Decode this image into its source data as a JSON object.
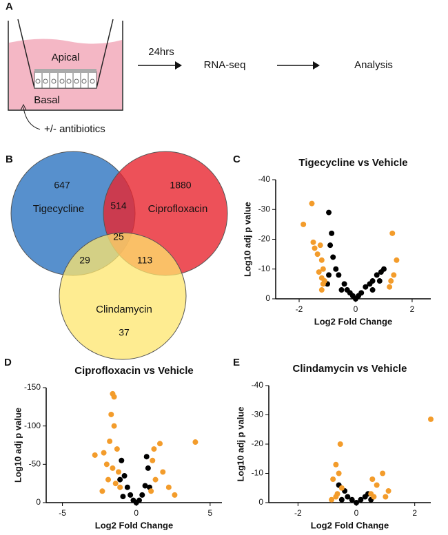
{
  "panel_labels": [
    "A",
    "B",
    "C",
    "D",
    "E"
  ],
  "schematic": {
    "apical": "Apical",
    "basal": "Basal",
    "treatment": "+/- antibiotics",
    "steps": [
      "24hrs",
      "RNA-seq",
      "Analysis"
    ]
  },
  "venn": {
    "sets": [
      "Tigecycline",
      "Ciprofloxacin",
      "Clindamycin"
    ],
    "counts": {
      "tigecycline_only": 647,
      "ciprofloxacin_only": 1880,
      "clindamycin_only": 37,
      "tig_cip": 514,
      "tig_clin": 29,
      "cip_clin": 113,
      "all": 25
    }
  },
  "chart_data": [
    {
      "type": "scatter",
      "title": "Tigecycline vs Vehicle",
      "x_label": "Log2 Fold Change",
      "y_label": "Log10 adj p value",
      "xlim": [
        -2.83,
        2.66
      ],
      "xticks": [
        -2,
        0,
        2
      ],
      "ylim": [
        0,
        -40
      ],
      "yticks": [
        -40,
        -30,
        -20,
        -10,
        0
      ],
      "series": [
        {
          "color": "#f39c2b",
          "x": [
            -1.85,
            -1.55,
            -1.5,
            -1.45,
            -1.35,
            -1.25,
            -1.2,
            -1.15,
            -1.3,
            -1.2,
            -1.15,
            -1.2,
            -1.1,
            1.3,
            1.45,
            1.25,
            1.2,
            1.35
          ],
          "values": [
            -25,
            -32,
            -19,
            -17,
            -15,
            -18,
            -13,
            -10,
            -9,
            -7,
            -5,
            -3,
            -6,
            -22,
            -13,
            -6,
            -4,
            -8
          ]
        },
        {
          "color": "#000000",
          "x": [
            -0.95,
            -0.85,
            -0.9,
            -0.8,
            -0.7,
            -0.6,
            -0.4,
            -0.3,
            -0.2,
            -0.1,
            0,
            0.1,
            0.2,
            0.35,
            0.5,
            0.6,
            0.75,
            0.9,
            1.0,
            0.85,
            -0.95,
            -1.0,
            -0.5,
            0.6
          ],
          "values": [
            -29,
            -22,
            -18,
            -14,
            -10,
            -8,
            -5,
            -3,
            -2,
            -1,
            0,
            -1,
            -2,
            -4,
            -5,
            -6,
            -8,
            -9,
            -10,
            -6,
            -8,
            -5,
            -3,
            -3
          ]
        }
      ]
    },
    {
      "type": "scatter",
      "title": "Ciprofloxacin vs Vehicle",
      "x_label": "Log2 Fold Change",
      "y_label": "Log10 adj p value",
      "xlim": [
        -6.1,
        5.8
      ],
      "xticks": [
        -5,
        0,
        5
      ],
      "ylim": [
        0,
        -150
      ],
      "yticks": [
        -150,
        -100,
        -50,
        0
      ],
      "series": [
        {
          "color": "#f39c2b",
          "x": [
            -1.6,
            -1.5,
            -1.7,
            -1.5,
            -2.8,
            -2.2,
            -1.8,
            -1.3,
            -2.0,
            -1.6,
            -1.2,
            -1.9,
            -1.4,
            -1.1,
            -2.3,
            1.6,
            1.2,
            1.1,
            4.0,
            1.8,
            1.3,
            2.2,
            1.0,
            2.6
          ],
          "values": [
            -142,
            -138,
            -115,
            -100,
            -62,
            -65,
            -80,
            -70,
            -50,
            -45,
            -40,
            -30,
            -25,
            -20,
            -15,
            -77,
            -70,
            -55,
            -79,
            -40,
            -30,
            -20,
            -15,
            -10
          ]
        },
        {
          "color": "#000000",
          "x": [
            -1.0,
            -0.8,
            -0.6,
            -0.4,
            -0.2,
            0,
            0.2,
            0.4,
            0.6,
            0.8,
            0.7,
            -1.1,
            0.9,
            -0.9
          ],
          "values": [
            -55,
            -35,
            -20,
            -10,
            -3,
            0,
            -3,
            -10,
            -22,
            -45,
            -60,
            -30,
            -20,
            -8
          ]
        }
      ]
    },
    {
      "type": "scatter",
      "title": "Clindamycin vs Vehicle",
      "x_label": "Log2 Fold Change",
      "y_label": "Log10 adj p value",
      "xlim": [
        -3.0,
        2.55
      ],
      "xticks": [
        -2,
        0,
        2
      ],
      "ylim": [
        0,
        -40
      ],
      "yticks": [
        -40,
        -30,
        -20,
        -10,
        0
      ],
      "series": [
        {
          "color": "#f39c2b",
          "x": [
            2.55,
            -0.55,
            -0.7,
            -0.6,
            -0.8,
            -0.5,
            -0.65,
            -0.7,
            0.55,
            0.9,
            0.7,
            1.1,
            0.5,
            0.6,
            1.0,
            -0.85
          ],
          "values": [
            -28.5,
            -20,
            -13,
            -10,
            -8,
            -5,
            -3,
            -2,
            -8,
            -10,
            -6,
            -4,
            -3,
            -2,
            -2,
            -1
          ]
        },
        {
          "color": "#000000",
          "x": [
            -0.6,
            -0.4,
            -0.3,
            -0.15,
            0,
            0.15,
            0.3,
            0.4,
            0.5,
            -0.5
          ],
          "values": [
            -6,
            -4,
            -2,
            -1,
            0,
            -1,
            -2,
            -3,
            -1,
            -1
          ]
        }
      ]
    }
  ]
}
